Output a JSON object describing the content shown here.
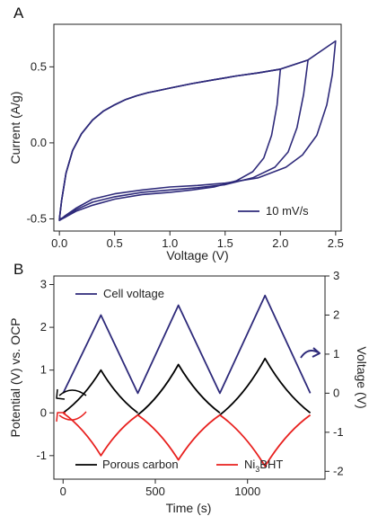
{
  "chart_data": [
    {
      "type": "line",
      "panel_label": "A",
      "xlabel": "Voltage (V)",
      "ylabel": "Current (A/g)",
      "xlim": [
        -0.05,
        2.55
      ],
      "ylim": [
        -0.58,
        0.78
      ],
      "x_ticks": [
        0.0,
        0.5,
        1.0,
        1.5,
        2.0,
        2.5
      ],
      "x_tick_labels": [
        "0.0",
        "0.5",
        "1.0",
        "1.5",
        "2.0",
        "2.5"
      ],
      "y_ticks": [
        -0.5,
        0.0,
        0.5
      ],
      "y_tick_labels": [
        "-0.5",
        "0.0",
        "0.5"
      ],
      "legend": {
        "label": "10 mV/s",
        "position": "bottom-right"
      },
      "color": "#2e2a7a",
      "series": [
        {
          "upper": {
            "x": [
              0.0,
              0.02,
              0.06,
              0.12,
              0.2,
              0.3,
              0.4,
              0.5,
              0.6,
              0.7,
              0.8,
              0.9,
              1.0,
              1.2,
              1.4,
              1.6,
              1.8,
              2.0
            ],
            "y": [
              -0.5,
              -0.38,
              -0.2,
              -0.05,
              0.06,
              0.15,
              0.21,
              0.25,
              0.285,
              0.31,
              0.33,
              0.345,
              0.36,
              0.39,
              0.415,
              0.44,
              0.46,
              0.485
            ]
          },
          "lower": {
            "x": [
              0.0,
              0.05,
              0.15,
              0.3,
              0.5,
              0.75,
              1.0,
              1.2,
              1.4,
              1.6,
              1.75,
              1.85,
              1.92,
              1.97,
              2.0
            ],
            "y": [
              -0.5,
              -0.49,
              -0.45,
              -0.41,
              -0.37,
              -0.34,
              -0.325,
              -0.31,
              -0.29,
              -0.25,
              -0.19,
              -0.1,
              0.05,
              0.25,
              0.485
            ]
          }
        },
        {
          "upper": {
            "x": [
              0.0,
              0.02,
              0.06,
              0.12,
              0.2,
              0.3,
              0.4,
              0.5,
              0.6,
              0.7,
              0.8,
              0.9,
              1.0,
              1.2,
              1.4,
              1.6,
              1.8,
              2.0,
              2.25
            ],
            "y": [
              -0.5,
              -0.38,
              -0.2,
              -0.05,
              0.06,
              0.15,
              0.21,
              0.25,
              0.285,
              0.31,
              0.33,
              0.345,
              0.36,
              0.39,
              0.415,
              0.44,
              0.46,
              0.485,
              0.545
            ]
          },
          "lower": {
            "x": [
              0.0,
              0.05,
              0.15,
              0.3,
              0.5,
              0.75,
              1.0,
              1.25,
              1.5,
              1.75,
              1.95,
              2.07,
              2.15,
              2.21,
              2.25
            ],
            "y": [
              -0.51,
              -0.49,
              -0.44,
              -0.39,
              -0.355,
              -0.325,
              -0.31,
              -0.295,
              -0.275,
              -0.23,
              -0.16,
              -0.06,
              0.1,
              0.32,
              0.545
            ]
          }
        },
        {
          "upper": {
            "x": [
              0.0,
              0.02,
              0.06,
              0.12,
              0.2,
              0.3,
              0.4,
              0.5,
              0.6,
              0.7,
              0.8,
              0.9,
              1.0,
              1.2,
              1.4,
              1.6,
              1.8,
              2.0,
              2.25,
              2.5
            ],
            "y": [
              -0.5,
              -0.38,
              -0.2,
              -0.05,
              0.06,
              0.15,
              0.21,
              0.25,
              0.285,
              0.31,
              0.33,
              0.345,
              0.36,
              0.39,
              0.415,
              0.44,
              0.46,
              0.485,
              0.545,
              0.67
            ]
          },
          "lower": {
            "x": [
              0.0,
              0.05,
              0.15,
              0.3,
              0.5,
              0.75,
              1.0,
              1.25,
              1.5,
              1.8,
              2.05,
              2.2,
              2.33,
              2.42,
              2.47,
              2.5
            ],
            "y": [
              -0.51,
              -0.48,
              -0.43,
              -0.37,
              -0.335,
              -0.31,
              -0.29,
              -0.28,
              -0.265,
              -0.23,
              -0.16,
              -0.08,
              0.05,
              0.25,
              0.45,
              0.67
            ]
          }
        }
      ]
    },
    {
      "type": "line",
      "panel_label": "B",
      "xlabel": "Time (s)",
      "ylabel": "Potential (V) vs. OCP",
      "y2label": "Voltage (V)",
      "xlim": [
        -50,
        1420
      ],
      "ylim": [
        -1.55,
        3.2
      ],
      "y2lim": [
        -2.2,
        3.0
      ],
      "x_ticks": [
        0,
        500,
        1000
      ],
      "x_tick_labels": [
        "0",
        "500",
        "1000"
      ],
      "y_ticks": [
        -1,
        0,
        1,
        2,
        3
      ],
      "y_tick_labels": [
        "-1",
        "0",
        "1",
        "2",
        "3"
      ],
      "y2_ticks": [
        -2,
        -1,
        0,
        1,
        2,
        3
      ],
      "y2_tick_labels": [
        "-2",
        "-1",
        "0",
        "1",
        "2",
        "3"
      ],
      "legend": [
        {
          "label": "Cell voltage",
          "color": "#2e2a7a",
          "position": "top-left"
        },
        {
          "label": "Porous carbon",
          "color": "#000000",
          "position": "bottom-left"
        },
        {
          "label_main": "Ni",
          "label_sub": "3",
          "label_rest": "BHT",
          "color": "#e8201e",
          "position": "bottom-right"
        }
      ],
      "series": [
        {
          "name": "Cell voltage",
          "axis": "right",
          "color": "#2e2a7a",
          "x": [
            0,
            205,
            405,
            625,
            850,
            1095,
            1340
          ],
          "y": [
            0.0,
            2.0,
            0.0,
            2.25,
            0.0,
            2.5,
            0.0
          ]
        },
        {
          "name": "Porous carbon",
          "axis": "left",
          "color": "#000000",
          "segments": [
            {
              "x": [
                0,
                205,
                405
              ],
              "y": [
                0.0,
                1.0,
                0.0
              ]
            },
            {
              "x": [
                405,
                625,
                850
              ],
              "y": [
                -0.05,
                1.13,
                0.0
              ]
            },
            {
              "x": [
                850,
                1095,
                1340
              ],
              "y": [
                -0.05,
                1.27,
                0.0
              ]
            }
          ]
        },
        {
          "name": "Ni3BHT",
          "axis": "left",
          "color": "#e8201e",
          "segments": [
            {
              "x": [
                0,
                205,
                405
              ],
              "y": [
                0.0,
                -1.0,
                -0.05
              ]
            },
            {
              "x": [
                405,
                625,
                850
              ],
              "y": [
                -0.05,
                -1.1,
                -0.05
              ]
            },
            {
              "x": [
                850,
                1095,
                1340
              ],
              "y": [
                -0.05,
                -1.25,
                -0.05
              ]
            }
          ]
        }
      ]
    }
  ]
}
